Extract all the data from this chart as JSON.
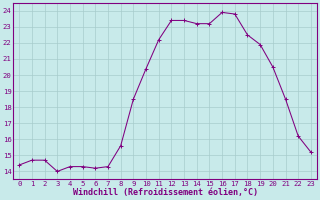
{
  "x": [
    0,
    1,
    2,
    3,
    4,
    5,
    6,
    7,
    8,
    9,
    10,
    11,
    12,
    13,
    14,
    15,
    16,
    17,
    18,
    19,
    20,
    21,
    22,
    23
  ],
  "y": [
    14.4,
    14.7,
    14.7,
    14.0,
    14.3,
    14.3,
    14.2,
    14.3,
    15.6,
    18.5,
    20.4,
    22.2,
    23.4,
    23.4,
    23.2,
    23.2,
    23.9,
    23.8,
    22.5,
    21.9,
    20.5,
    18.5,
    16.2,
    15.2
  ],
  "line_color": "#800080",
  "marker": "+",
  "marker_color": "#800080",
  "bg_color": "#c8eaea",
  "grid_color": "#a8cccc",
  "axis_color": "#800080",
  "spine_color": "#800080",
  "xlabel": "Windchill (Refroidissement éolien,°C)",
  "xlim": [
    -0.5,
    23.5
  ],
  "ylim": [
    13.5,
    24.5
  ],
  "yticks": [
    14,
    15,
    16,
    17,
    18,
    19,
    20,
    21,
    22,
    23,
    24
  ],
  "xticks": [
    0,
    1,
    2,
    3,
    4,
    5,
    6,
    7,
    8,
    9,
    10,
    11,
    12,
    13,
    14,
    15,
    16,
    17,
    18,
    19,
    20,
    21,
    22,
    23
  ],
  "tick_fontsize": 5.2,
  "label_fontsize": 6.0,
  "linewidth": 0.75,
  "markersize": 2.8,
  "markeredgewidth": 0.7
}
